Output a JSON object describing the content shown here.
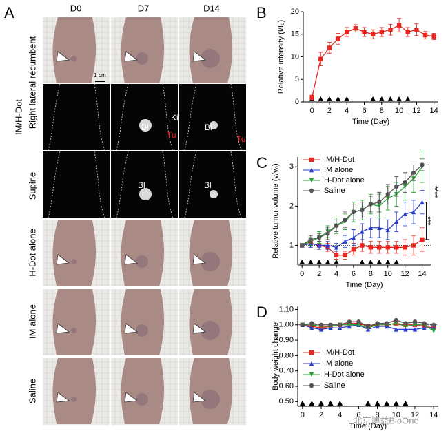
{
  "figure": {
    "panel_labels": [
      "A",
      "B",
      "C",
      "D"
    ],
    "columns": [
      "D0",
      "D7",
      "D14"
    ],
    "row_labels": [
      "IM/H-Dot",
      "Right lateral recumbent",
      "Supine",
      "H-Dot alone",
      "IM alone",
      "Saline"
    ],
    "scale_bar": "1 cm",
    "annotations": [
      "Bl",
      "Ki",
      "Tu",
      "Bl",
      "Tu",
      "Bl",
      "Bl"
    ],
    "watermark": "北京博益BioOne"
  },
  "chart_data": [
    {
      "type": "line",
      "xlabel": "Time (Day)",
      "ylabel": "Relative intensity (I/I₀)",
      "x": [
        0,
        1,
        2,
        3,
        4,
        5,
        6,
        7,
        8,
        9,
        10,
        11,
        12,
        13,
        14
      ],
      "xlim": [
        -1,
        14.5
      ],
      "xticks": [
        0,
        2,
        4,
        6,
        8,
        10,
        12,
        14
      ],
      "ylim": [
        0,
        20
      ],
      "yticks": [
        0,
        5,
        10,
        15,
        20
      ],
      "dose_days": [
        0,
        1,
        2,
        3,
        4,
        7,
        8,
        9,
        10,
        11
      ],
      "series": [
        {
          "name": "IM/H-Dot",
          "color": "#e8261f",
          "marker": "square",
          "values": [
            1,
            9.5,
            12,
            14,
            15.5,
            16.3,
            15.5,
            15,
            15.5,
            16,
            17,
            15.5,
            16,
            14.8,
            14.5
          ],
          "errors": [
            0.5,
            1.5,
            1.2,
            1.2,
            1,
            0.8,
            1,
            1,
            1,
            1.2,
            1.5,
            1,
            1.3,
            0.8,
            0.7
          ]
        }
      ]
    },
    {
      "type": "line",
      "xlabel": "Time (Day)",
      "ylabel": "Relative tumor volume (v/v₀)",
      "x": [
        0,
        1,
        2,
        3,
        4,
        5,
        6,
        7,
        8,
        9,
        10,
        11,
        12,
        13,
        14
      ],
      "xlim": [
        -0.5,
        15
      ],
      "xticks": [
        0,
        2,
        4,
        6,
        8,
        10,
        12,
        14
      ],
      "ylim": [
        0.5,
        3.25
      ],
      "yticks": [
        1,
        2,
        3
      ],
      "legend": "upper left",
      "dose_days": [
        0,
        1,
        2,
        3,
        4,
        7,
        8,
        9,
        10,
        11
      ],
      "annotations": [
        "****",
        "***"
      ],
      "series": [
        {
          "name": "IM/H-Dot",
          "color": "#e8261f",
          "marker": "square",
          "values": [
            1,
            1.05,
            1.0,
            0.95,
            0.75,
            0.75,
            0.9,
            1.0,
            0.95,
            0.95,
            0.95,
            0.95,
            0.95,
            1.0,
            1.15
          ],
          "errors": [
            0,
            0.1,
            0.1,
            0.1,
            0.1,
            0.1,
            0.15,
            0.15,
            0.15,
            0.15,
            0.15,
            0.15,
            0.2,
            0.25,
            0.3
          ]
        },
        {
          "name": "IM alone",
          "color": "#2a3fc9",
          "marker": "triangle",
          "values": [
            1,
            1.05,
            1.0,
            1.0,
            0.95,
            1.1,
            1.2,
            1.35,
            1.45,
            1.45,
            1.4,
            1.6,
            1.8,
            1.85,
            2.1
          ],
          "errors": [
            0,
            0.1,
            0.1,
            0.1,
            0.1,
            0.15,
            0.2,
            0.2,
            0.25,
            0.25,
            0.25,
            0.25,
            0.3,
            0.3,
            0.3
          ]
        },
        {
          "name": "H-Dot alone",
          "color": "#26a233",
          "marker": "triangle-down",
          "values": [
            1,
            1.1,
            1.2,
            1.35,
            1.5,
            1.6,
            1.85,
            1.9,
            2.05,
            2.0,
            2.2,
            2.3,
            2.5,
            2.7,
            3.0
          ],
          "errors": [
            0,
            0.1,
            0.15,
            0.15,
            0.2,
            0.2,
            0.25,
            0.25,
            0.25,
            0.3,
            0.3,
            0.3,
            0.35,
            0.35,
            0.4
          ]
        },
        {
          "name": "Saline",
          "color": "#555555",
          "marker": "circle",
          "values": [
            1,
            1.15,
            1.2,
            1.3,
            1.5,
            1.65,
            1.85,
            1.9,
            2.05,
            2.1,
            2.3,
            2.5,
            2.6,
            2.85,
            3.05
          ],
          "errors": [
            0,
            0.1,
            0.1,
            0.15,
            0.15,
            0.2,
            0.2,
            0.2,
            0.2,
            0.25,
            0.25,
            0.25,
            0.25,
            0.2,
            0.15
          ]
        }
      ]
    },
    {
      "type": "line",
      "xlabel": "Time (Day)",
      "ylabel": "Body weight change",
      "x": [
        0,
        1,
        2,
        3,
        4,
        5,
        6,
        7,
        8,
        9,
        10,
        11,
        12,
        13,
        14
      ],
      "xlim": [
        -0.5,
        14.5
      ],
      "xticks": [
        0,
        2,
        4,
        6,
        8,
        10,
        12,
        14
      ],
      "ylim": [
        0.47,
        1.12
      ],
      "legend": "lower left",
      "dose_days": [
        0,
        1,
        2,
        3,
        4,
        7,
        8,
        9,
        10,
        11
      ],
      "yticks": [
        {
          "value": 0.5,
          "label": "0.50"
        },
        {
          "value": 0.6,
          "label": "0.60"
        },
        {
          "value": 0.7,
          "label": "0.70"
        },
        {
          "value": 0.8,
          "label": "0.80"
        },
        {
          "value": 0.9,
          "label": "0.90"
        },
        {
          "value": 1.0,
          "label": "1.00"
        },
        {
          "value": 1.1,
          "label": "1.10"
        }
      ],
      "series": [
        {
          "name": "IM/H-Dot",
          "color": "#e8261f",
          "marker": "square",
          "values": [
            1.0,
            0.99,
            0.98,
            0.99,
            1.0,
            1.01,
            1.01,
            0.99,
            1.0,
            1.0,
            1.01,
            1.0,
            1.0,
            0.99,
            0.98
          ]
        },
        {
          "name": "IM alone",
          "color": "#2a3fc9",
          "marker": "triangle",
          "values": [
            1.0,
            0.98,
            0.97,
            0.98,
            0.98,
            0.99,
            1.0,
            0.97,
            0.99,
            0.99,
            0.97,
            0.97,
            0.97,
            0.98,
            0.98
          ]
        },
        {
          "name": "H-Dot alone",
          "color": "#26a233",
          "marker": "triangle-down",
          "values": [
            1.0,
            1.0,
            0.99,
            0.99,
            1.0,
            1.0,
            1.0,
            0.98,
            1.0,
            1.0,
            1.01,
            0.99,
            1.0,
            1.0,
            0.96
          ]
        },
        {
          "name": "Saline",
          "color": "#555555",
          "marker": "circle",
          "values": [
            1.0,
            1.01,
            1.0,
            1.0,
            1.0,
            1.02,
            1.02,
            0.99,
            1.01,
            1.01,
            1.03,
            1.01,
            1.02,
            1.01,
            1.0
          ]
        }
      ]
    }
  ]
}
